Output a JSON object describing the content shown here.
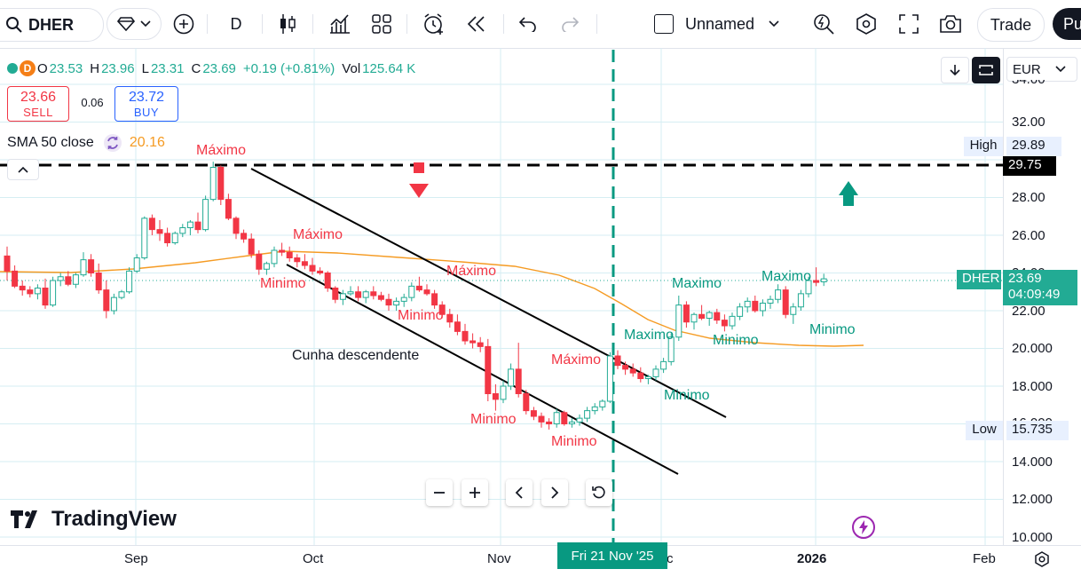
{
  "toolbar": {
    "symbol": "DHER",
    "interval": "D",
    "layout_name": "Unnamed",
    "trade_label": "Trade",
    "publish_label": "Pu"
  },
  "legend": {
    "open_label": "O",
    "open": "23.53",
    "high_label": "H",
    "high": "23.96",
    "low_label": "L",
    "low": "23.31",
    "close_label": "C",
    "close": "23.69",
    "change": "+0.19 (+0.81%)",
    "volume_label": "Vol",
    "volume": "125.64 K",
    "badge": "D"
  },
  "trade_panel": {
    "sell_price": "23.66",
    "sell_label": "SELL",
    "spread": "0.06",
    "buy_price": "23.72",
    "buy_label": "BUY"
  },
  "indicator": {
    "name": "SMA 50 close",
    "value": "20.16"
  },
  "currency": "EUR",
  "price_axis": {
    "top_partial": "34.00",
    "ticks": [
      "32.00",
      "28.00",
      "26.00",
      "22.00",
      "20.000",
      "18.000",
      "14.000",
      "12.000",
      "10.000"
    ],
    "partial_16": "16.000",
    "partial_24": "24.00"
  },
  "tags": {
    "high_label": "High",
    "high_value": "29.89",
    "line_value": "29.75",
    "symbol_tag": "DHER",
    "last_price": "23.69",
    "countdown": "04:09:49",
    "low_label": "Low",
    "low_value": "15.735"
  },
  "time_axis": {
    "labels": [
      "Sep",
      "Oct",
      "Nov",
      "c",
      "2026",
      "Feb"
    ],
    "crosshair_date": "Fri 21 Nov '25"
  },
  "annotations": {
    "wedge": "Cunha descendente",
    "max_1": "Máximo",
    "max_2": "Máximo",
    "max_3": "Máximo",
    "max_4": "Máximo",
    "min_1": "Minimo",
    "min_2": "Minimo",
    "min_3": "Minimo",
    "min_4": "Minimo",
    "maxg_1": "Maximo",
    "maxg_2": "Maximo",
    "maxg_3": "Maximo",
    "ming_1": "Minimo",
    "ming_2": "Minimo",
    "ming_3": "Minimo"
  },
  "logo_text": "TradingView",
  "colors": {
    "up": "#22ab94",
    "down": "#f23645",
    "sma": "#f59b23",
    "accent": "#2962ff",
    "dark": "#131722"
  },
  "chart_data": {
    "type": "candlestick",
    "symbol": "DHER",
    "ylim": [
      10,
      34
    ],
    "sma_value": 20.16,
    "candles": [
      [
        24.9,
        25.4,
        23.6,
        24.1
      ],
      [
        24.1,
        24.4,
        23.2,
        23.3
      ],
      [
        23.3,
        23.6,
        22.8,
        23.1
      ],
      [
        23.1,
        23.3,
        22.7,
        22.9
      ],
      [
        22.9,
        23.4,
        22.6,
        23.2
      ],
      [
        23.2,
        23.7,
        22.1,
        22.3
      ],
      [
        22.3,
        23.8,
        22.2,
        23.6
      ],
      [
        23.6,
        24.0,
        23.3,
        23.8
      ],
      [
        23.8,
        24.1,
        23.3,
        23.4
      ],
      [
        23.4,
        24.0,
        23.2,
        23.9
      ],
      [
        23.9,
        25.1,
        23.8,
        24.7
      ],
      [
        24.7,
        25.0,
        23.8,
        24.0
      ],
      [
        24.0,
        24.5,
        22.9,
        23.1
      ],
      [
        23.1,
        23.6,
        21.6,
        22.0
      ],
      [
        22.0,
        22.9,
        21.8,
        22.7
      ],
      [
        22.7,
        23.1,
        22.6,
        23.0
      ],
      [
        23.0,
        24.3,
        22.9,
        24.1
      ],
      [
        24.1,
        25.0,
        24.0,
        24.8
      ],
      [
        24.8,
        27.0,
        24.7,
        26.9
      ],
      [
        26.9,
        27.1,
        26.0,
        26.3
      ],
      [
        26.3,
        26.8,
        25.7,
        26.1
      ],
      [
        26.1,
        26.4,
        25.4,
        25.6
      ],
      [
        25.6,
        26.2,
        25.5,
        26.1
      ],
      [
        26.1,
        26.6,
        25.9,
        26.4
      ],
      [
        26.4,
        26.8,
        26.0,
        26.7
      ],
      [
        26.7,
        27.2,
        26.1,
        26.3
      ],
      [
        26.3,
        28.1,
        26.2,
        27.9
      ],
      [
        27.9,
        29.9,
        27.8,
        29.6
      ],
      [
        29.6,
        29.7,
        27.6,
        27.9
      ],
      [
        27.9,
        28.2,
        26.8,
        26.9
      ],
      [
        26.9,
        27.0,
        25.8,
        26.1
      ],
      [
        26.1,
        26.3,
        25.6,
        25.8
      ],
      [
        25.8,
        26.1,
        24.8,
        25.0
      ],
      [
        25.0,
        25.2,
        23.9,
        24.2
      ],
      [
        24.2,
        24.6,
        23.9,
        24.5
      ],
      [
        24.5,
        25.4,
        24.3,
        25.2
      ],
      [
        25.2,
        25.6,
        24.9,
        25.1
      ],
      [
        25.1,
        25.4,
        24.6,
        24.8
      ],
      [
        24.8,
        25.0,
        24.3,
        24.6
      ],
      [
        24.6,
        25.0,
        24.2,
        24.4
      ],
      [
        24.4,
        24.8,
        23.9,
        24.1
      ],
      [
        24.1,
        24.3,
        23.9,
        24.0
      ],
      [
        24.0,
        24.1,
        23.0,
        23.2
      ],
      [
        23.2,
        23.3,
        22.4,
        22.6
      ],
      [
        22.6,
        23.1,
        22.3,
        22.9
      ],
      [
        22.9,
        23.3,
        22.8,
        23.0
      ],
      [
        23.0,
        23.3,
        22.5,
        22.7
      ],
      [
        22.7,
        23.1,
        22.4,
        23.0
      ],
      [
        23.0,
        23.3,
        22.6,
        22.8
      ],
      [
        22.8,
        23.0,
        22.5,
        22.6
      ],
      [
        22.6,
        22.9,
        22.0,
        22.3
      ],
      [
        22.3,
        22.7,
        22.0,
        22.5
      ],
      [
        22.5,
        22.9,
        22.2,
        22.7
      ],
      [
        22.7,
        23.5,
        22.5,
        23.3
      ],
      [
        23.3,
        23.8,
        23.0,
        23.1
      ],
      [
        23.1,
        23.4,
        22.8,
        22.9
      ],
      [
        22.9,
        23.1,
        22.1,
        22.3
      ],
      [
        22.3,
        22.5,
        21.6,
        21.8
      ],
      [
        21.8,
        22.1,
        21.1,
        21.4
      ],
      [
        21.4,
        21.8,
        20.7,
        20.9
      ],
      [
        20.9,
        21.3,
        20.2,
        20.4
      ],
      [
        20.4,
        20.8,
        20.0,
        20.3
      ],
      [
        20.3,
        20.6,
        19.8,
        20.1
      ],
      [
        20.1,
        20.5,
        17.2,
        17.6
      ],
      [
        17.6,
        18.1,
        16.7,
        17.3
      ],
      [
        17.3,
        18.3,
        17.1,
        18.0
      ],
      [
        18.0,
        19.2,
        17.8,
        18.9
      ],
      [
        18.9,
        20.3,
        17.4,
        17.6
      ],
      [
        17.6,
        17.8,
        16.5,
        16.7
      ],
      [
        16.7,
        16.9,
        16.2,
        16.4
      ],
      [
        16.4,
        16.6,
        15.8,
        16.1
      ],
      [
        16.1,
        16.3,
        15.7,
        16.0
      ],
      [
        16.0,
        16.8,
        15.8,
        16.6
      ],
      [
        16.6,
        16.7,
        15.9,
        16.0
      ],
      [
        16.0,
        16.3,
        15.8,
        16.1
      ],
      [
        16.1,
        16.5,
        15.9,
        16.3
      ],
      [
        16.3,
        16.9,
        16.1,
        16.7
      ],
      [
        16.7,
        17.1,
        16.5,
        16.9
      ],
      [
        16.9,
        17.3,
        16.7,
        17.2
      ],
      [
        17.2,
        19.8,
        17.1,
        19.6
      ],
      [
        19.6,
        19.9,
        18.9,
        19.1
      ],
      [
        19.1,
        19.3,
        18.6,
        18.9
      ],
      [
        18.9,
        19.2,
        18.5,
        18.7
      ],
      [
        18.7,
        19.0,
        18.2,
        18.4
      ],
      [
        18.4,
        18.6,
        18.1,
        18.5
      ],
      [
        18.5,
        19.1,
        18.3,
        18.9
      ],
      [
        18.9,
        19.5,
        18.7,
        19.3
      ],
      [
        19.3,
        20.8,
        19.1,
        20.6
      ],
      [
        20.6,
        22.8,
        20.4,
        22.3
      ],
      [
        22.3,
        22.5,
        21.1,
        21.4
      ],
      [
        21.4,
        21.9,
        21.0,
        21.8
      ],
      [
        21.8,
        22.3,
        21.5,
        21.6
      ],
      [
        21.6,
        22.0,
        21.2,
        21.9
      ],
      [
        21.9,
        22.1,
        21.3,
        21.5
      ],
      [
        21.5,
        21.8,
        20.9,
        21.2
      ],
      [
        21.2,
        21.9,
        21.0,
        21.7
      ],
      [
        21.7,
        22.4,
        21.5,
        22.2
      ],
      [
        22.2,
        22.7,
        21.9,
        22.5
      ],
      [
        22.5,
        22.8,
        21.9,
        22.0
      ],
      [
        22.0,
        22.6,
        21.7,
        22.4
      ],
      [
        22.4,
        22.8,
        22.1,
        22.6
      ],
      [
        22.6,
        23.4,
        22.4,
        23.1
      ],
      [
        23.1,
        23.3,
        21.6,
        21.8
      ],
      [
        21.8,
        22.4,
        21.3,
        22.2
      ],
      [
        22.2,
        23.1,
        22.0,
        22.9
      ],
      [
        22.9,
        23.8,
        22.7,
        23.6
      ],
      [
        23.6,
        24.3,
        23.3,
        23.5
      ],
      [
        23.53,
        23.96,
        23.31,
        23.69
      ]
    ]
  }
}
